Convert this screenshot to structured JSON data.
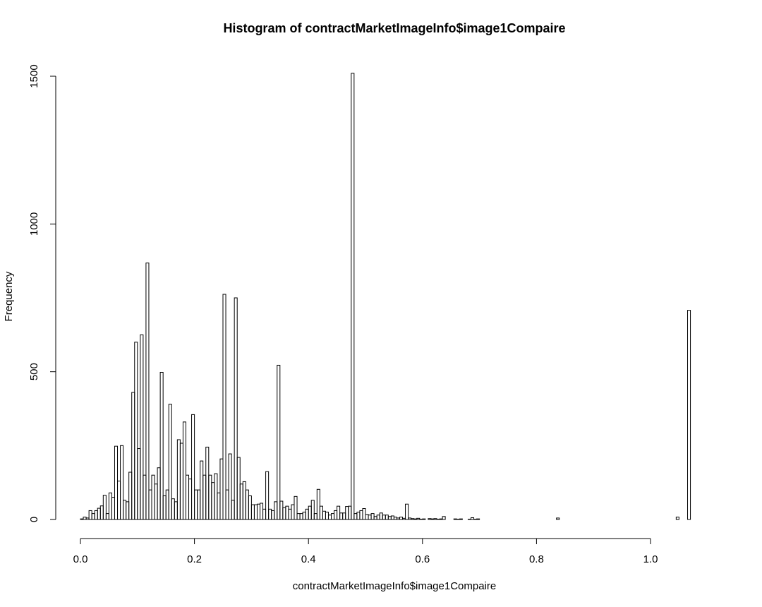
{
  "chart_data": {
    "type": "bar",
    "title": "Histogram of contractMarketImageInfo$image1Compaire",
    "xlabel": "contractMarketImageInfo$image1Compaire",
    "ylabel": "Frequency",
    "bin_width": 0.005,
    "bin_start": 0.0,
    "xlim": [
      0.0,
      1.1
    ],
    "ylim": [
      0,
      1500
    ],
    "x_ticks": [
      0.0,
      0.2,
      0.4,
      0.6,
      0.8,
      1.0
    ],
    "x_tick_labels": [
      "0.0",
      "0.2",
      "0.4",
      "0.6",
      "0.8",
      "1.0"
    ],
    "y_ticks": [
      0,
      500,
      1000,
      1500
    ],
    "y_tick_labels": [
      "0",
      "500",
      "1000",
      "1500"
    ],
    "grid": false,
    "legend": "none",
    "values": [
      2,
      8,
      5,
      30,
      20,
      30,
      38,
      46,
      82,
      20,
      90,
      75,
      248,
      130,
      250,
      65,
      60,
      160,
      430,
      600,
      240,
      625,
      150,
      868,
      100,
      150,
      120,
      175,
      498,
      80,
      100,
      390,
      70,
      60,
      270,
      258,
      330,
      150,
      137,
      355,
      100,
      100,
      198,
      150,
      245,
      150,
      125,
      155,
      90,
      205,
      762,
      100,
      222,
      65,
      750,
      210,
      120,
      128,
      100,
      80,
      50,
      50,
      52,
      55,
      35,
      162,
      35,
      30,
      60,
      522,
      62,
      40,
      45,
      35,
      50,
      78,
      20,
      20,
      25,
      35,
      45,
      65,
      20,
      102,
      45,
      28,
      25,
      15,
      20,
      30,
      45,
      22,
      22,
      44,
      45,
      1510,
      20,
      25,
      30,
      37,
      17,
      15,
      20,
      10,
      15,
      22,
      15,
      15,
      10,
      12,
      8,
      5,
      8,
      4,
      52,
      5,
      3,
      2,
      4,
      1,
      2,
      0,
      3,
      2,
      3,
      1,
      2,
      10,
      0,
      0,
      0,
      2,
      1,
      2,
      0,
      0,
      1,
      6,
      1,
      2,
      0,
      0,
      0,
      0,
      0,
      0,
      0,
      0,
      0,
      0,
      0,
      0,
      0,
      0,
      0,
      0,
      0,
      0,
      0,
      0,
      0,
      0,
      0,
      0,
      0,
      0,
      0,
      5,
      0,
      0,
      0,
      0,
      0,
      0,
      0,
      0,
      0,
      0,
      0,
      0,
      0,
      0,
      0,
      0,
      0,
      0,
      0,
      0,
      0,
      0,
      0,
      0,
      0,
      0,
      0,
      0,
      0,
      0,
      0,
      0,
      0,
      0,
      0,
      0,
      0,
      0,
      0,
      0,
      0,
      8,
      0,
      0,
      0,
      708,
      0,
      0,
      0,
      0,
      0,
      0,
      0,
      0,
      0,
      0,
      0,
      0,
      0,
      0,
      0,
      0,
      0,
      0,
      0,
      0
    ]
  }
}
